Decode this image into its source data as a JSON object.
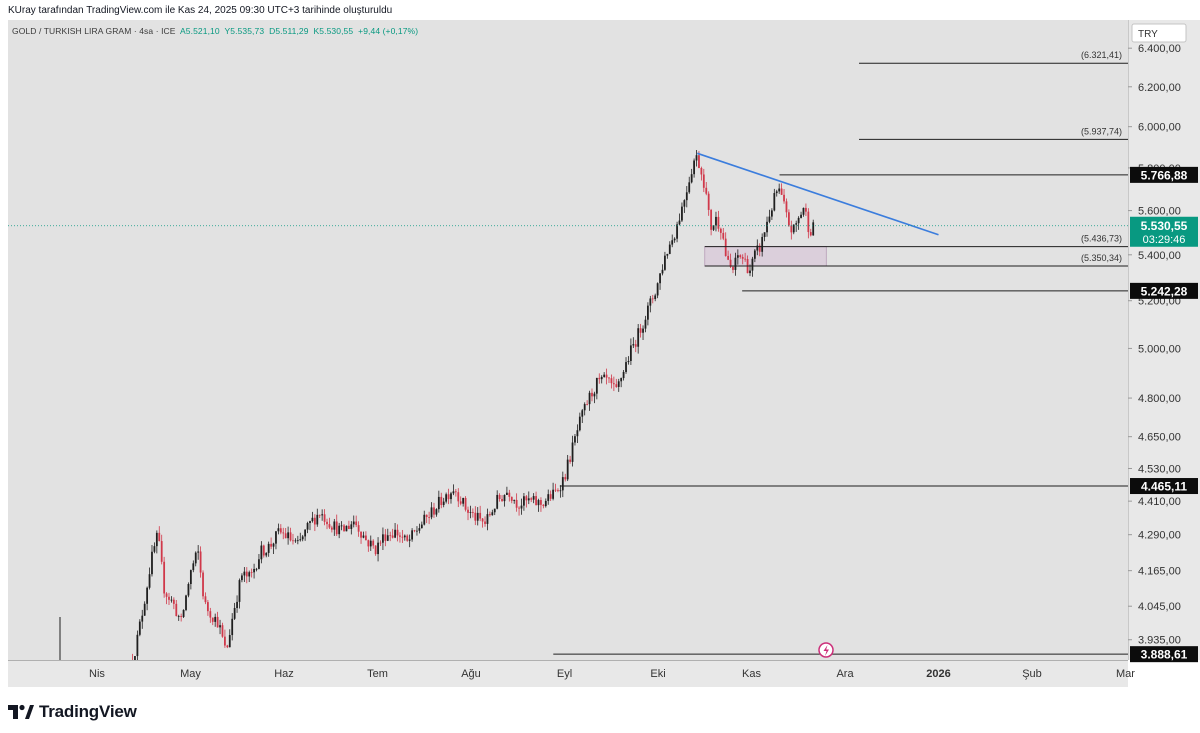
{
  "header": {
    "text": "KUray tarafından TradingView.com ile Kas 24, 2025 09:30 UTC+3 tarihinde oluşturuldu"
  },
  "legend": {
    "symbol": "GOLD / TURKISH LIRA GRAM · 4sa · ICE",
    "open": "A5.521,10",
    "high": "Y5.535,73",
    "low": "D5.511,29",
    "close": "K5.530,55",
    "change": "+9,44 (+0,17%)"
  },
  "currency": "TRY",
  "footer": {
    "brand": "TradingView"
  },
  "colors": {
    "up": "#089981",
    "down": "#f23645",
    "trendline": "#3b7ddd",
    "current_price_bg": "#089981"
  },
  "chart_data": {
    "type": "candlestick",
    "title": "GOLD / TURKISH LIRA GRAM · 4sa · ICE",
    "y_scale": "log",
    "ylim": [
      3870,
      6550
    ],
    "y_ticks": [
      {
        "value": 6400,
        "label": "6.400,00"
      },
      {
        "value": 6200,
        "label": "6.200,00"
      },
      {
        "value": 6000,
        "label": "6.000,00"
      },
      {
        "value": 5800,
        "label": "5.800,00"
      },
      {
        "value": 5600,
        "label": "5.600,00"
      },
      {
        "value": 5400,
        "label": "5.400,00"
      },
      {
        "value": 5200,
        "label": "5.200,00"
      },
      {
        "value": 5000,
        "label": "5.000,00"
      },
      {
        "value": 4800,
        "label": "4.800,00"
      },
      {
        "value": 4650,
        "label": "4.650,00"
      },
      {
        "value": 4530,
        "label": "4.530,00"
      },
      {
        "value": 4410,
        "label": "4.410,00"
      },
      {
        "value": 4290,
        "label": "4.290,00"
      },
      {
        "value": 4165,
        "label": "4.165,00"
      },
      {
        "value": 4045,
        "label": "4.045,00"
      },
      {
        "value": 3935,
        "label": "3.935,00"
      }
    ],
    "x_ticks": [
      {
        "t": 0.0,
        "label": "Nis",
        "bold": false
      },
      {
        "t": 1.0,
        "label": "May",
        "bold": false
      },
      {
        "t": 2.0,
        "label": "Haz",
        "bold": false
      },
      {
        "t": 3.0,
        "label": "Tem",
        "bold": false
      },
      {
        "t": 4.0,
        "label": "Ağu",
        "bold": false
      },
      {
        "t": 5.0,
        "label": "Eyl",
        "bold": false
      },
      {
        "t": 6.0,
        "label": "Eki",
        "bold": false
      },
      {
        "t": 7.0,
        "label": "Kas",
        "bold": false
      },
      {
        "t": 8.0,
        "label": "Ara",
        "bold": false
      },
      {
        "t": 9.0,
        "label": "2026",
        "bold": true
      },
      {
        "t": 10.0,
        "label": "Şub",
        "bold": false
      },
      {
        "t": 11.0,
        "label": "Mar",
        "bold": false
      }
    ],
    "price_path": [
      [
        0.38,
        3870
      ],
      [
        0.42,
        3920
      ],
      [
        0.5,
        4050
      ],
      [
        0.58,
        4200
      ],
      [
        0.65,
        4290
      ],
      [
        0.72,
        4100
      ],
      [
        0.82,
        4050
      ],
      [
        0.9,
        3990
      ],
      [
        1.0,
        4160
      ],
      [
        1.08,
        4230
      ],
      [
        1.15,
        4050
      ],
      [
        1.22,
        4020
      ],
      [
        1.3,
        3990
      ],
      [
        1.38,
        3890
      ],
      [
        1.46,
        4030
      ],
      [
        1.55,
        4150
      ],
      [
        1.64,
        4140
      ],
      [
        1.75,
        4230
      ],
      [
        1.85,
        4250
      ],
      [
        1.95,
        4300
      ],
      [
        2.05,
        4280
      ],
      [
        2.15,
        4250
      ],
      [
        2.28,
        4330
      ],
      [
        2.38,
        4370
      ],
      [
        2.5,
        4330
      ],
      [
        2.62,
        4300
      ],
      [
        2.75,
        4340
      ],
      [
        2.88,
        4270
      ],
      [
        2.98,
        4240
      ],
      [
        3.08,
        4290
      ],
      [
        3.2,
        4300
      ],
      [
        3.32,
        4260
      ],
      [
        3.45,
        4320
      ],
      [
        3.58,
        4370
      ],
      [
        3.7,
        4420
      ],
      [
        3.82,
        4460
      ],
      [
        3.95,
        4380
      ],
      [
        4.05,
        4350
      ],
      [
        4.15,
        4330
      ],
      [
        4.28,
        4410
      ],
      [
        4.4,
        4450
      ],
      [
        4.5,
        4400
      ],
      [
        4.62,
        4410
      ],
      [
        4.75,
        4400
      ],
      [
        4.9,
        4440
      ],
      [
        5.0,
        4500
      ],
      [
        5.08,
        4600
      ],
      [
        5.16,
        4700
      ],
      [
        5.25,
        4790
      ],
      [
        5.35,
        4860
      ],
      [
        5.45,
        4870
      ],
      [
        5.55,
        4820
      ],
      [
        5.62,
        4900
      ],
      [
        5.7,
        4980
      ],
      [
        5.78,
        5050
      ],
      [
        5.88,
        5150
      ],
      [
        5.98,
        5250
      ],
      [
        6.08,
        5400
      ],
      [
        6.18,
        5500
      ],
      [
        6.26,
        5620
      ],
      [
        6.34,
        5760
      ],
      [
        6.4,
        5860
      ],
      [
        6.44,
        5820
      ],
      [
        6.5,
        5720
      ],
      [
        6.56,
        5520
      ],
      [
        6.62,
        5560
      ],
      [
        6.68,
        5520
      ],
      [
        6.74,
        5360
      ],
      [
        6.8,
        5330
      ],
      [
        6.86,
        5400
      ],
      [
        6.92,
        5380
      ],
      [
        6.98,
        5330
      ],
      [
        7.04,
        5400
      ],
      [
        7.1,
        5440
      ],
      [
        7.16,
        5540
      ],
      [
        7.22,
        5620
      ],
      [
        7.28,
        5700
      ],
      [
        7.33,
        5650
      ],
      [
        7.38,
        5560
      ],
      [
        7.44,
        5500
      ],
      [
        7.5,
        5560
      ],
      [
        7.56,
        5620
      ],
      [
        7.62,
        5510
      ],
      [
        7.68,
        5530
      ]
    ],
    "horizontal_levels": [
      {
        "value": 6321.41,
        "label": "(6.321,41)",
        "t_start": 8.15,
        "style": "thin"
      },
      {
        "value": 5937.74,
        "label": "(5.937,74)",
        "t_start": 8.15,
        "style": "thin"
      },
      {
        "value": 5766.88,
        "label": "5.766,88",
        "t_start": 7.3,
        "style": "axis-badge"
      },
      {
        "value": 5436.73,
        "label": "(5.436,73)",
        "t_start": 6.5,
        "style": "thin"
      },
      {
        "value": 5350.34,
        "label": "(5.350,34)",
        "t_start": 6.5,
        "style": "thin"
      },
      {
        "value": 5242.28,
        "label": "5.242,28",
        "t_start": 6.9,
        "style": "axis-badge"
      },
      {
        "value": 4465.11,
        "label": "4.465,11",
        "t_start": 4.95,
        "style": "axis-badge"
      },
      {
        "value": 3888.61,
        "label": "3.888,61",
        "t_start": 4.88,
        "style": "axis-badge"
      }
    ],
    "zone": {
      "low": 5350.34,
      "high": 5436.73,
      "t_start": 6.5,
      "t_end": 7.8
    },
    "trendline": {
      "start": [
        6.42,
        5870
      ],
      "end": [
        9.0,
        5490
      ]
    },
    "current_price": {
      "value": 5530.55,
      "label": "5.530,55",
      "countdown": "03:29:46"
    }
  }
}
